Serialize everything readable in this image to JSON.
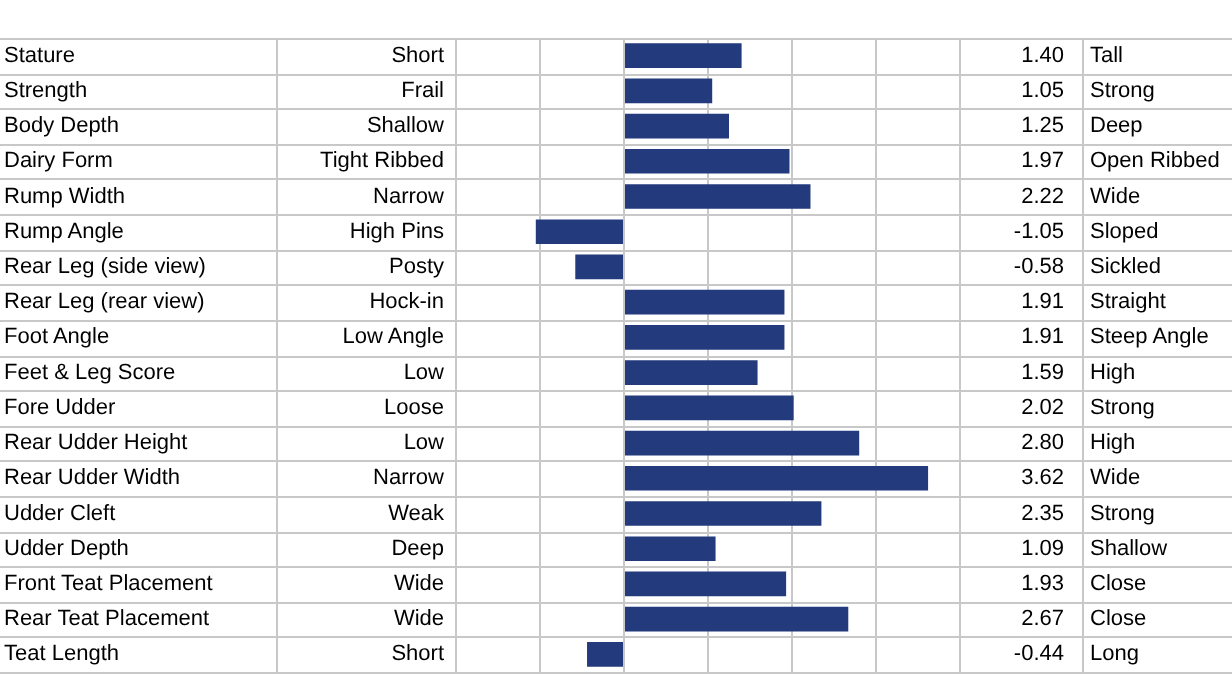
{
  "chart_data": {
    "type": "bar",
    "orientation": "horizontal",
    "categories": [
      "Stature",
      "Strength",
      "Body Depth",
      "Dairy Form",
      "Rump Width",
      "Rump Angle",
      "Rear Leg (side view)",
      "Rear Leg (rear view)",
      "Foot Angle",
      "Feet & Leg Score",
      "Fore Udder",
      "Rear Udder Height",
      "Rear Udder Width",
      "Udder Cleft",
      "Udder Depth",
      "Front Teat Placement",
      "Rear Teat Placement",
      "Teat Length"
    ],
    "values": [
      1.4,
      1.05,
      1.25,
      1.97,
      2.22,
      -1.05,
      -0.58,
      1.91,
      1.91,
      1.59,
      2.02,
      2.8,
      3.62,
      2.35,
      1.09,
      1.93,
      2.67,
      -0.44
    ],
    "value_labels": [
      "1.40",
      "1.05",
      "1.25",
      "1.97",
      "2.22",
      "-1.05",
      "-0.58",
      "1.91",
      "1.91",
      "1.59",
      "2.02",
      "2.80",
      "3.62",
      "2.35",
      "1.09",
      "1.93",
      "2.67",
      "-0.44"
    ],
    "color": "#233a7c",
    "xlim": [
      -2,
      4
    ],
    "xticks": [
      {
        "value": -2,
        "label": null
      },
      {
        "value": -1,
        "label": null
      },
      {
        "value": 0,
        "label": null
      },
      {
        "value": 1,
        "label": null
      },
      {
        "value": 2,
        "label": null
      },
      {
        "value": 3,
        "label": null
      },
      {
        "value": 4,
        "label": null
      }
    ],
    "grid": "x",
    "annotations": [
      "Short",
      "Tall",
      "Frail",
      "Strong",
      "Shallow",
      "Deep",
      "Tight Ribbed",
      "Open Ribbed",
      "Narrow",
      "Wide",
      "High Pins",
      "Sloped",
      "Posty",
      "Sickled",
      "Hock-in",
      "Straight",
      "Low Angle",
      "Steep Angle",
      "Low",
      "High",
      "Loose",
      "Strong",
      "Low",
      "High",
      "Narrow",
      "Wide",
      "Weak",
      "Strong",
      "Deep",
      "Shallow",
      "Wide",
      "Close",
      "Wide",
      "Close",
      "Short",
      "Long"
    ]
  }
}
